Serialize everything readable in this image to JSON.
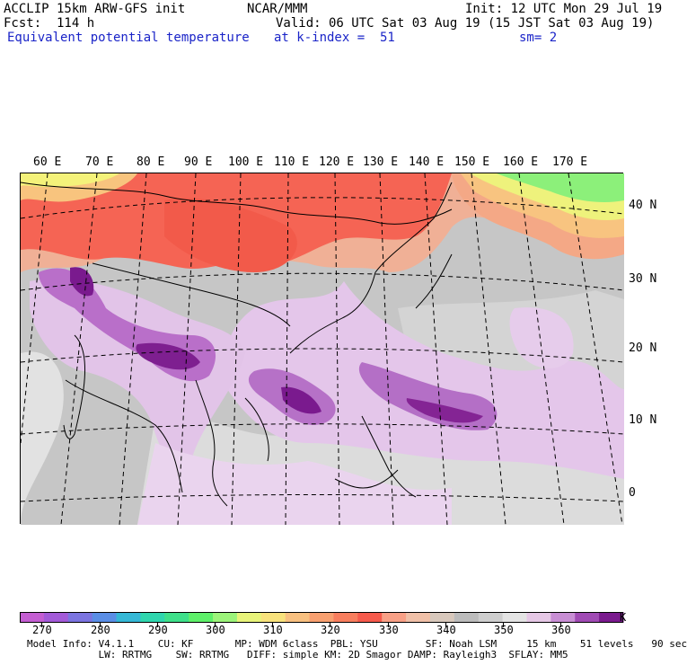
{
  "header": {
    "line1_left": "ACCLIP 15km ARW-GFS init",
    "line1_center": "NCAR/MMM",
    "line1_right": "Init: 12 UTC Mon 29 Jul 19",
    "line2_left": "Fcst:  114 h",
    "line2_right": "Valid: 06 UTC Sat 03 Aug 19 (15 JST Sat 03 Aug 19)",
    "line3_left": "Equivalent potential temperature",
    "line3_center": "at k-index =  51",
    "line3_right": "sm= 2"
  },
  "map": {
    "lon_labels": [
      "60 E",
      "70 E",
      "80 E",
      "90 E",
      "100 E",
      "110 E",
      "120 E",
      "130 E",
      "140 E",
      "150 E",
      "160 E",
      "170 E"
    ],
    "lat_labels": [
      "40 N",
      "30 N",
      "20 N",
      "10 N",
      "0"
    ]
  },
  "colorbar": {
    "unit": "K",
    "labels": [
      "270",
      "280",
      "290",
      "300",
      "310",
      "320",
      "330",
      "340",
      "350",
      "360"
    ],
    "colors": [
      "#c45ed2",
      "#a35ad8",
      "#7b74e0",
      "#5a8ee6",
      "#35b8d6",
      "#2fd6ae",
      "#3ee08a",
      "#5ef06a",
      "#9cf47a",
      "#e8f47a",
      "#f8e27c",
      "#f8c080",
      "#f8a070",
      "#f87e5e",
      "#f65a4c",
      "#f8a086",
      "#f0c0a8",
      "#d8c8bc",
      "#bcbcbc",
      "#cecece",
      "#e4e4e4",
      "#e6c8e6",
      "#c88ed4",
      "#a04ab4",
      "#7a1a8e"
    ]
  },
  "footer": {
    "line1": "Model Info: V4.1.1    CU: KF       MP: WDM 6class  PBL: YSU        SF: Noah LSM     15 km    51 levels   90 sec",
    "line2": "            LW: RRTMG    SW: RRTMG   DIFF: simple KM: 2D Smagor DAMP: Rayleigh3  SFLAY: MM5"
  }
}
